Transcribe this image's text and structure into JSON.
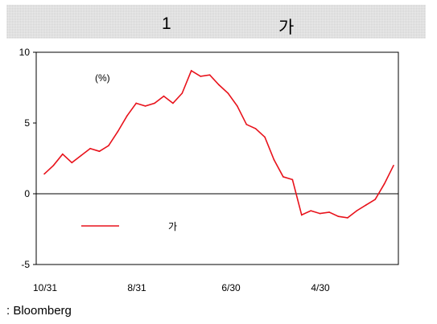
{
  "header": {
    "number": "1",
    "korean": "가"
  },
  "chart_data": {
    "type": "line",
    "ylim": [
      -5,
      10
    ],
    "yticks": [
      10,
      5,
      0,
      -5
    ],
    "x_tick_labels": [
      "10/31",
      "8/31",
      "6/30",
      "4/30"
    ],
    "unit_label": "(%)",
    "legend": {
      "label": "가",
      "color": "#e8121b"
    },
    "series": [
      {
        "color": "#e8121b",
        "values": [
          1.4,
          2.0,
          2.8,
          2.2,
          2.7,
          3.2,
          3.0,
          3.4,
          4.4,
          5.5,
          6.4,
          6.2,
          6.4,
          6.9,
          6.4,
          7.1,
          8.7,
          8.3,
          8.4,
          7.7,
          7.1,
          6.2,
          4.9,
          4.6,
          4.0,
          2.4,
          1.2,
          1.0,
          -1.5,
          -1.2,
          -1.4,
          -1.3,
          -1.6,
          -1.7,
          -1.2,
          -0.8,
          -0.4,
          0.7,
          2.0
        ]
      }
    ]
  },
  "source": ": Bloomberg",
  "colors": {
    "line": "#e8121b",
    "title_bg": "#d3d3d3"
  }
}
